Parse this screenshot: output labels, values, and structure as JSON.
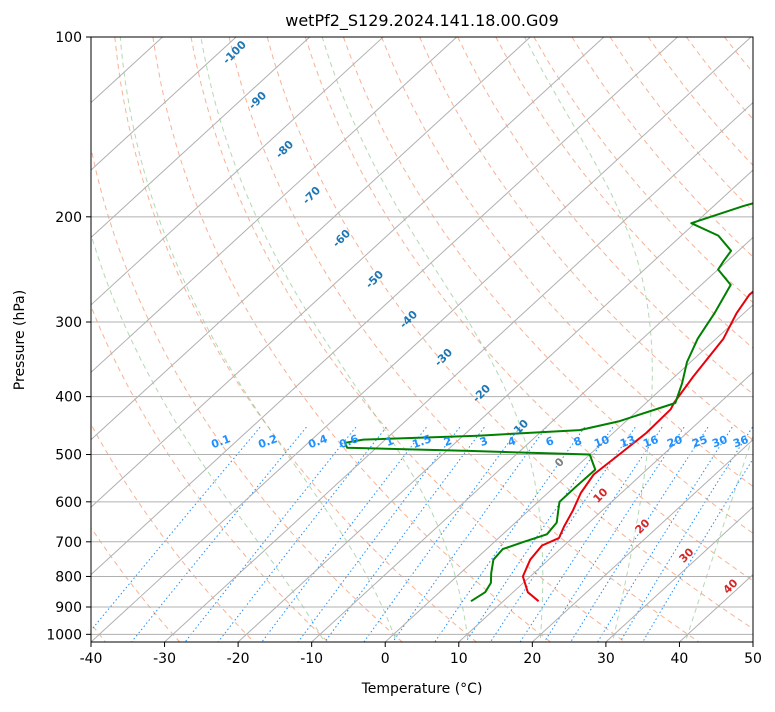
{
  "chart_data": {
    "type": "line",
    "title": "wetPf2_S129.2024.141.18.00.G09",
    "xlabel": "Temperature (°C)",
    "ylabel": "Pressure (hPa)",
    "xlim": [
      -40,
      50
    ],
    "ylim": [
      1030,
      100
    ],
    "y_scale": "log",
    "x_ticks": [
      -40,
      -30,
      -20,
      -10,
      0,
      10,
      20,
      30,
      40,
      50
    ],
    "y_ticks": [
      100,
      200,
      300,
      400,
      500,
      600,
      700,
      800,
      900,
      1000
    ],
    "grid": true,
    "series": [
      {
        "color": "#e8000b",
        "points": [
          [
            14.8,
            880
          ],
          [
            12.0,
            850
          ],
          [
            9.0,
            800
          ],
          [
            7.5,
            750
          ],
          [
            7.0,
            710
          ],
          [
            8.2,
            690
          ],
          [
            7.2,
            660
          ],
          [
            6.0,
            620
          ],
          [
            4.5,
            580
          ],
          [
            3.5,
            540
          ],
          [
            4.0,
            500
          ],
          [
            4.5,
            460
          ],
          [
            4.3,
            420
          ],
          [
            3.8,
            410
          ],
          [
            2.5,
            370
          ],
          [
            1.0,
            320
          ],
          [
            -1.0,
            290
          ],
          [
            -2.0,
            270
          ],
          [
            -1.5,
            240
          ],
          [
            2.0,
            225
          ],
          [
            6.0,
            215
          ],
          [
            9.0,
            200
          ],
          [
            13.0,
            185
          ],
          [
            17.0,
            172
          ],
          [
            22.0,
            157
          ],
          [
            23.0,
            145
          ],
          [
            24.0,
            132
          ],
          [
            25.0,
            122
          ],
          [
            29.0,
            110
          ],
          [
            32.0,
            100
          ]
        ]
      },
      {
        "color": "#008000",
        "points": [
          [
            5.6,
            880
          ],
          [
            6.2,
            850
          ],
          [
            5.6,
            820
          ],
          [
            4.2,
            790
          ],
          [
            2.5,
            750
          ],
          [
            2.2,
            720
          ],
          [
            4.0,
            700
          ],
          [
            6.0,
            680
          ],
          [
            5.6,
            650
          ],
          [
            4.0,
            620
          ],
          [
            2.9,
            600
          ],
          [
            2.9,
            565
          ],
          [
            3.0,
            530
          ],
          [
            0.0,
            500
          ],
          [
            -17.0,
            493
          ],
          [
            -34.0,
            487
          ],
          [
            -35.0,
            478
          ],
          [
            -33.0,
            472
          ],
          [
            -18.0,
            465
          ],
          [
            -5.0,
            455
          ],
          [
            -1.0,
            440
          ],
          [
            4.0,
            410
          ],
          [
            2.0,
            380
          ],
          [
            -0.5,
            350
          ],
          [
            -2.5,
            320
          ],
          [
            -4.0,
            290
          ],
          [
            -6.0,
            260
          ],
          [
            -10.0,
            245
          ],
          [
            -10.5,
            237
          ],
          [
            -11.0,
            228
          ],
          [
            -15.0,
            215
          ],
          [
            -20.5,
            205
          ],
          [
            -16.0,
            192
          ],
          [
            -12.0,
            183
          ],
          [
            -10.0,
            172
          ],
          [
            -12.0,
            160
          ],
          [
            -9.0,
            148
          ],
          [
            -6.5,
            140
          ],
          [
            -6.7,
            130
          ],
          [
            -6.5,
            115
          ],
          [
            -6.0,
            108
          ],
          [
            -3.0,
            100
          ]
        ]
      }
    ],
    "dry_adiabat_labels": [
      "-100",
      "-90",
      "-80",
      "-70",
      "-60",
      "-50",
      "-40",
      "-30",
      "-20",
      "-10"
    ],
    "moist_adiabat_labels": [
      "0",
      "10",
      "20",
      "30",
      "40"
    ],
    "mixing_ratio_labels": [
      "0.1",
      "0.2",
      "0.4",
      "0.6",
      "1",
      "1.5",
      "2",
      "3",
      "4",
      "6",
      "8",
      "10",
      "13",
      "16",
      "20",
      "25",
      "30",
      "36"
    ]
  }
}
